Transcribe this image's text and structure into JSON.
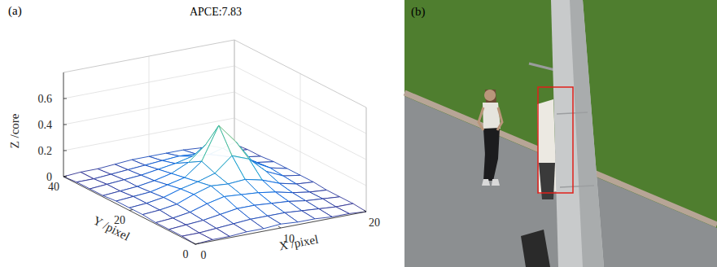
{
  "chart_data": {
    "type": "surface",
    "panel_label": "(a)",
    "title": "APCE:7.83",
    "x_label": "X /pixel",
    "y_label": "Y /pixel",
    "z_label": "Z /core",
    "x": [
      0,
      2,
      4,
      6,
      8,
      10,
      12,
      14,
      16,
      18,
      20
    ],
    "y": [
      0,
      4,
      8,
      12,
      16,
      20,
      24,
      28,
      32,
      36,
      40
    ],
    "z": [
      [
        0.0,
        0.01,
        0.01,
        0.02,
        0.02,
        0.03,
        0.02,
        0.02,
        0.01,
        0.01,
        0.0
      ],
      [
        0.01,
        0.01,
        0.02,
        0.03,
        0.04,
        0.04,
        0.04,
        0.03,
        0.02,
        0.01,
        0.01
      ],
      [
        0.01,
        0.02,
        0.03,
        0.05,
        0.07,
        0.07,
        0.06,
        0.05,
        0.03,
        0.02,
        0.01
      ],
      [
        0.01,
        0.02,
        0.04,
        0.08,
        0.11,
        0.1,
        0.09,
        0.07,
        0.04,
        0.02,
        0.01
      ],
      [
        0.02,
        0.03,
        0.05,
        0.1,
        0.14,
        0.13,
        0.14,
        0.11,
        0.06,
        0.03,
        0.02
      ],
      [
        0.02,
        0.03,
        0.05,
        0.09,
        0.12,
        0.16,
        0.27,
        0.22,
        0.1,
        0.04,
        0.02
      ],
      [
        0.02,
        0.03,
        0.04,
        0.07,
        0.1,
        0.2,
        0.45,
        0.3,
        0.12,
        0.05,
        0.02
      ],
      [
        0.01,
        0.02,
        0.03,
        0.05,
        0.08,
        0.14,
        0.25,
        0.2,
        0.1,
        0.04,
        0.02
      ],
      [
        0.01,
        0.02,
        0.03,
        0.04,
        0.06,
        0.08,
        0.11,
        0.1,
        0.06,
        0.03,
        0.01
      ],
      [
        0.01,
        0.01,
        0.02,
        0.03,
        0.04,
        0.05,
        0.06,
        0.05,
        0.03,
        0.02,
        0.01
      ],
      [
        0.0,
        0.01,
        0.01,
        0.02,
        0.03,
        0.03,
        0.03,
        0.03,
        0.02,
        0.01,
        0.0
      ]
    ],
    "xlim": [
      0,
      20
    ],
    "ylim": [
      0,
      40
    ],
    "zlim": [
      0,
      0.8
    ],
    "xticks": [
      0,
      10,
      20
    ],
    "yticks": [
      0,
      20,
      40
    ],
    "zticks": [
      0,
      0.2,
      0.4,
      0.6
    ],
    "grid": true
  },
  "image": {
    "panel_label": "(b)"
  }
}
